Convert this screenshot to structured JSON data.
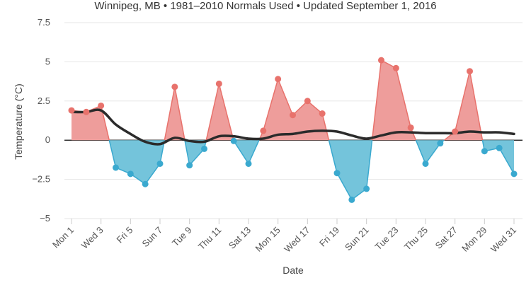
{
  "chart_data": {
    "type": "area",
    "subtitle": "Winnipeg, MB • 1981–2010 Normals Used • Updated September 1, 2016",
    "xlabel": "Date",
    "ylabel": "Temperature (°C)",
    "ylim": [
      -5,
      7.5
    ],
    "yticks": [
      "−5",
      "−2.5",
      "0",
      "2.5",
      "5",
      "7.5"
    ],
    "ytick_values": [
      -5,
      -2.5,
      0,
      2.5,
      5,
      7.5
    ],
    "x": [
      1,
      2,
      3,
      4,
      5,
      6,
      7,
      8,
      9,
      10,
      11,
      12,
      13,
      14,
      15,
      16,
      17,
      18,
      19,
      20,
      21,
      22,
      23,
      24,
      25,
      26,
      27,
      28,
      29,
      30,
      31
    ],
    "xtick_labels": [
      {
        "day": 1,
        "label": "Mon 1"
      },
      {
        "day": 3,
        "label": "Wed 3"
      },
      {
        "day": 5,
        "label": "Fri 5"
      },
      {
        "day": 7,
        "label": "Sun 7"
      },
      {
        "day": 9,
        "label": "Tue 9"
      },
      {
        "day": 11,
        "label": "Thu 11"
      },
      {
        "day": 13,
        "label": "Sat 13"
      },
      {
        "day": 15,
        "label": "Mon 15"
      },
      {
        "day": 17,
        "label": "Wed 17"
      },
      {
        "day": 19,
        "label": "Fri 19"
      },
      {
        "day": 21,
        "label": "Sun 21"
      },
      {
        "day": 23,
        "label": "Tue 23"
      },
      {
        "day": 25,
        "label": "Thu 25"
      },
      {
        "day": 27,
        "label": "Sat 27"
      },
      {
        "day": 29,
        "label": "Mon 29"
      },
      {
        "day": 31,
        "label": "Wed 31"
      }
    ],
    "series": [
      {
        "values": [
          1.9,
          1.8,
          2.2,
          -1.75,
          -2.15,
          -2.8,
          -1.5,
          3.4,
          -1.6,
          -0.55,
          3.6,
          -0.05,
          -1.5,
          0.6,
          3.9,
          1.6,
          2.5,
          1.7,
          -2.1,
          -3.8,
          -3.1,
          5.1,
          4.6,
          0.8,
          -1.5,
          -0.2,
          0.55,
          4.4,
          -0.7,
          -0.5,
          -2.15
        ]
      },
      {
        "values": [
          1.8,
          1.8,
          1.9,
          1.0,
          0.4,
          -0.1,
          -0.25,
          0.15,
          -0.05,
          -0.1,
          0.25,
          0.25,
          0.1,
          0.1,
          0.35,
          0.4,
          0.55,
          0.6,
          0.55,
          0.3,
          0.1,
          0.3,
          0.5,
          0.5,
          0.45,
          0.45,
          0.45,
          0.55,
          0.5,
          0.5,
          0.4
        ]
      }
    ],
    "colors": {
      "positive_fill": "#ee9d9b",
      "positive_line": "#e8726c",
      "negative_fill": "#74c4db",
      "negative_line": "#3aa9cf",
      "trend_line": "#2b2b2b",
      "grid": "#e6e6e6",
      "zero_line": "#333333"
    },
    "grid": true
  }
}
